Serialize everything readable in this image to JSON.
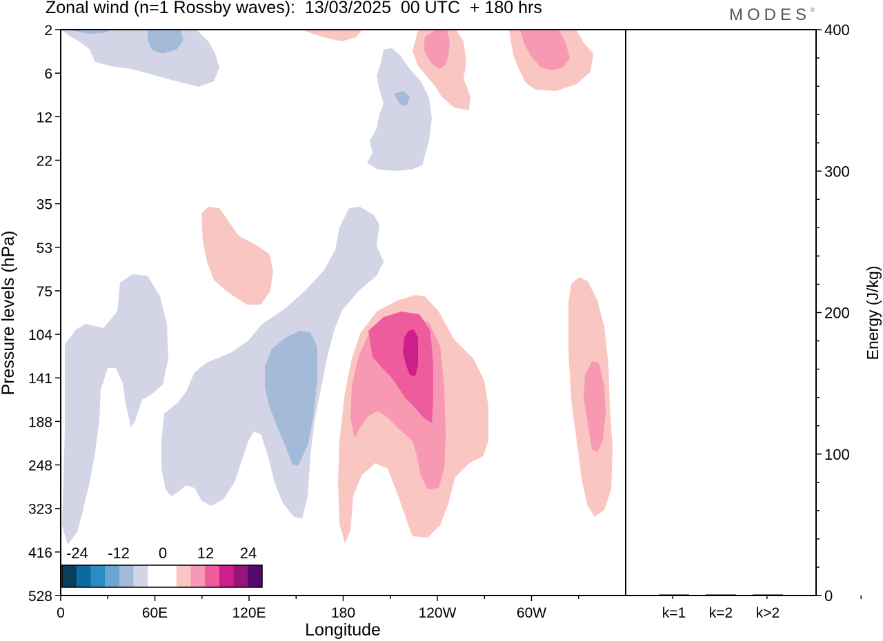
{
  "title": "Zonal wind (n=1 Rossby waves):  13/03/2025  00 UTC  + 180 hrs",
  "logo": "MODES",
  "logo_mark": "©",
  "chart_data": [
    {
      "type": "contour",
      "xlabel": "Longitude",
      "ylabel": "Pressure levels (hPa)",
      "x_tick_labels": [
        "0",
        "60E",
        "120E",
        "180",
        "120W",
        "60W"
      ],
      "y_tick_labels": [
        "2",
        "6",
        "12",
        "22",
        "35",
        "53",
        "75",
        "104",
        "141",
        "188",
        "248",
        "323",
        "416",
        "528"
      ],
      "colorbar": {
        "labels": [
          "-24",
          "-12",
          "0",
          "12",
          "24"
        ],
        "colors": [
          "#0b3d5c",
          "#0c6aa0",
          "#2b8cc4",
          "#6aa5cf",
          "#a3bad9",
          "#d3d5e6",
          "#ffffff",
          "#ffffff",
          "#f9c6c2",
          "#f799b2",
          "#ef5c9d",
          "#cc1f8c",
          "#96147a",
          "#560a6a"
        ]
      },
      "contour_colors": {
        "neg_1": "#d3d5e6",
        "neg_2": "#a3bad9",
        "pos_1": "#f9c6c2",
        "pos_2": "#f799b2",
        "pos_3": "#ef5c9d",
        "pos_4": "#cc1f8c"
      }
    },
    {
      "type": "bar",
      "ylabel": "Energy (J/kg)",
      "categories": [
        "k=1",
        "k=2",
        "k>2"
      ],
      "values": [
        0.5,
        0.2,
        0.5
      ],
      "ylim": [
        0,
        400
      ],
      "y_tick_labels": [
        "0",
        "100",
        "200",
        "300",
        "400"
      ]
    }
  ]
}
